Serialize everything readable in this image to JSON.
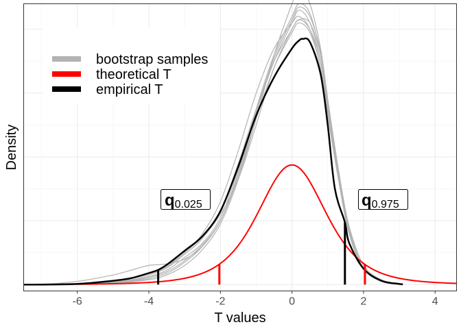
{
  "chart_data": {
    "type": "line",
    "xlabel": "T values",
    "ylabel": "Density",
    "xlim": [
      -7.5,
      4.6
    ],
    "ylim": [
      -0.02,
      0.88
    ],
    "x_ticks": [
      -6,
      -4,
      -2,
      0,
      2,
      4
    ],
    "grid": true,
    "legend_position": "top-left",
    "legend": [
      {
        "label": "bootstrap samples",
        "color": "#b3b3b3"
      },
      {
        "label": "theoretical T",
        "color": "#ff0000"
      },
      {
        "label": "empirical T",
        "color": "#000000"
      }
    ],
    "theoretical_T": {
      "distribution": "Student t",
      "df": 4,
      "color": "#ff0000"
    },
    "empirical_T": {
      "color": "#000000",
      "x": [
        -7.0,
        -6.0,
        -5.0,
        -4.5,
        -4.0,
        -3.74,
        -3.5,
        -3.0,
        -2.5,
        -2.0,
        -1.5,
        -1.0,
        -0.5,
        0.0,
        0.2,
        0.3,
        0.5,
        0.8,
        1.0,
        1.2,
        1.48,
        1.6,
        2.0,
        2.5,
        3.0,
        3.1
      ],
      "y": [
        0.0,
        0.002,
        0.012,
        0.02,
        0.036,
        0.046,
        0.062,
        0.106,
        0.152,
        0.23,
        0.37,
        0.53,
        0.65,
        0.74,
        0.765,
        0.77,
        0.76,
        0.66,
        0.5,
        0.3,
        0.195,
        0.13,
        0.05,
        0.012,
        0.002,
        0.001
      ]
    },
    "bootstrap_samples": [
      {
        "x": [
          -7.0,
          -5.5,
          -4.5,
          -4.0,
          -3.5,
          -3.0,
          -2.5,
          -2.0,
          -1.5,
          -1.0,
          -0.5,
          0.0,
          0.2,
          0.5,
          0.8,
          1.0,
          1.3,
          1.6,
          2.0,
          2.5,
          3.0
        ],
        "y": [
          0.0,
          0.004,
          0.015,
          0.03,
          0.052,
          0.095,
          0.145,
          0.23,
          0.38,
          0.55,
          0.7,
          0.8,
          0.83,
          0.8,
          0.7,
          0.56,
          0.35,
          0.18,
          0.06,
          0.015,
          0.002
        ]
      },
      {
        "x": [
          -7.0,
          -5.5,
          -4.5,
          -4.0,
          -3.5,
          -3.0,
          -2.5,
          -2.0,
          -1.5,
          -1.0,
          -0.5,
          0.0,
          0.2,
          0.5,
          0.8,
          1.0,
          1.3,
          1.6,
          2.0,
          2.5,
          3.0
        ],
        "y": [
          0.0,
          0.003,
          0.012,
          0.025,
          0.045,
          0.085,
          0.13,
          0.21,
          0.36,
          0.54,
          0.7,
          0.82,
          0.86,
          0.82,
          0.7,
          0.55,
          0.33,
          0.17,
          0.05,
          0.012,
          0.002
        ]
      },
      {
        "x": [
          -7.0,
          -6.0,
          -5.0,
          -4.5,
          -4.0,
          -3.5,
          -3.0,
          -2.5,
          -2.0,
          -1.5,
          -1.0,
          -0.5,
          0.0,
          0.2,
          0.5,
          0.8,
          1.0,
          1.3,
          1.6,
          2.0,
          2.5,
          3.0
        ],
        "y": [
          0.0,
          0.01,
          0.03,
          0.045,
          0.06,
          0.065,
          0.08,
          0.12,
          0.2,
          0.34,
          0.52,
          0.68,
          0.79,
          0.82,
          0.79,
          0.68,
          0.54,
          0.34,
          0.17,
          0.05,
          0.012,
          0.002
        ]
      },
      {
        "x": [
          -7.0,
          -5.5,
          -4.5,
          -4.0,
          -3.5,
          -3.0,
          -2.5,
          -2.0,
          -1.5,
          -1.0,
          -0.5,
          0.0,
          0.2,
          0.5,
          0.8,
          1.0,
          1.3,
          1.6,
          2.0,
          2.5,
          3.0
        ],
        "y": [
          0.0,
          0.002,
          0.008,
          0.018,
          0.035,
          0.07,
          0.12,
          0.2,
          0.35,
          0.55,
          0.72,
          0.84,
          0.88,
          0.85,
          0.72,
          0.56,
          0.33,
          0.16,
          0.05,
          0.01,
          0.001
        ]
      },
      {
        "x": [
          -7.0,
          -5.5,
          -4.5,
          -4.0,
          -3.5,
          -3.0,
          -2.5,
          -2.0,
          -1.5,
          -1.0,
          -0.5,
          0.0,
          0.2,
          0.5,
          0.8,
          1.0,
          1.3,
          1.6,
          2.0,
          2.5,
          3.0
        ],
        "y": [
          0.0,
          0.005,
          0.02,
          0.035,
          0.06,
          0.1,
          0.16,
          0.26,
          0.42,
          0.6,
          0.74,
          0.82,
          0.84,
          0.8,
          0.68,
          0.53,
          0.33,
          0.18,
          0.06,
          0.015,
          0.003
        ]
      },
      {
        "x": [
          -7.0,
          -5.0,
          -4.0,
          -3.5,
          -3.0,
          -2.5,
          -2.0,
          -1.5,
          -1.0,
          -0.5,
          0.0,
          0.2,
          0.5,
          0.8,
          1.0,
          1.3,
          1.6,
          2.0,
          2.5,
          3.0
        ],
        "y": [
          0.0,
          0.004,
          0.015,
          0.03,
          0.06,
          0.11,
          0.19,
          0.33,
          0.52,
          0.72,
          0.88,
          0.93,
          0.88,
          0.74,
          0.58,
          0.34,
          0.16,
          0.05,
          0.01,
          0.001
        ]
      },
      {
        "x": [
          -7.0,
          -5.5,
          -4.5,
          -4.0,
          -3.5,
          -3.0,
          -2.5,
          -2.0,
          -1.5,
          -1.0,
          -0.5,
          0.0,
          0.2,
          0.5,
          0.8,
          1.0,
          1.3,
          1.6,
          2.0,
          2.5,
          3.0
        ],
        "y": [
          0.0,
          0.003,
          0.014,
          0.03,
          0.055,
          0.1,
          0.15,
          0.22,
          0.33,
          0.5,
          0.68,
          0.8,
          0.83,
          0.82,
          0.72,
          0.58,
          0.36,
          0.18,
          0.06,
          0.014,
          0.002
        ]
      },
      {
        "x": [
          -7.0,
          -5.5,
          -4.5,
          -4.0,
          -3.5,
          -3.0,
          -2.5,
          -2.0,
          -1.5,
          -1.0,
          -0.5,
          0.0,
          0.2,
          0.5,
          0.8,
          1.0,
          1.3,
          1.6,
          2.0,
          2.5,
          3.0
        ],
        "y": [
          0.0,
          0.002,
          0.01,
          0.022,
          0.04,
          0.075,
          0.125,
          0.2,
          0.34,
          0.54,
          0.71,
          0.83,
          0.87,
          0.84,
          0.73,
          0.58,
          0.34,
          0.16,
          0.05,
          0.011,
          0.001
        ]
      }
    ],
    "quantile_lines": [
      {
        "label": "0.025",
        "series": "theoretical T",
        "x": -2.03,
        "color": "#ff0000"
      },
      {
        "label": "0.025",
        "series": "empirical T",
        "x": -3.74,
        "color": "#000000"
      },
      {
        "label": "0.975",
        "series": "theoretical T",
        "x": 2.04,
        "color": "#ff0000"
      },
      {
        "label": "0.975",
        "series": "empirical T",
        "x": 1.48,
        "color": "#000000"
      }
    ],
    "annotations": [
      {
        "main": "q",
        "sub": "0.025",
        "x": -2.95,
        "y": 0.262
      },
      {
        "main": "q",
        "sub": "0.975",
        "x": 2.08,
        "y": 0.262
      }
    ]
  }
}
